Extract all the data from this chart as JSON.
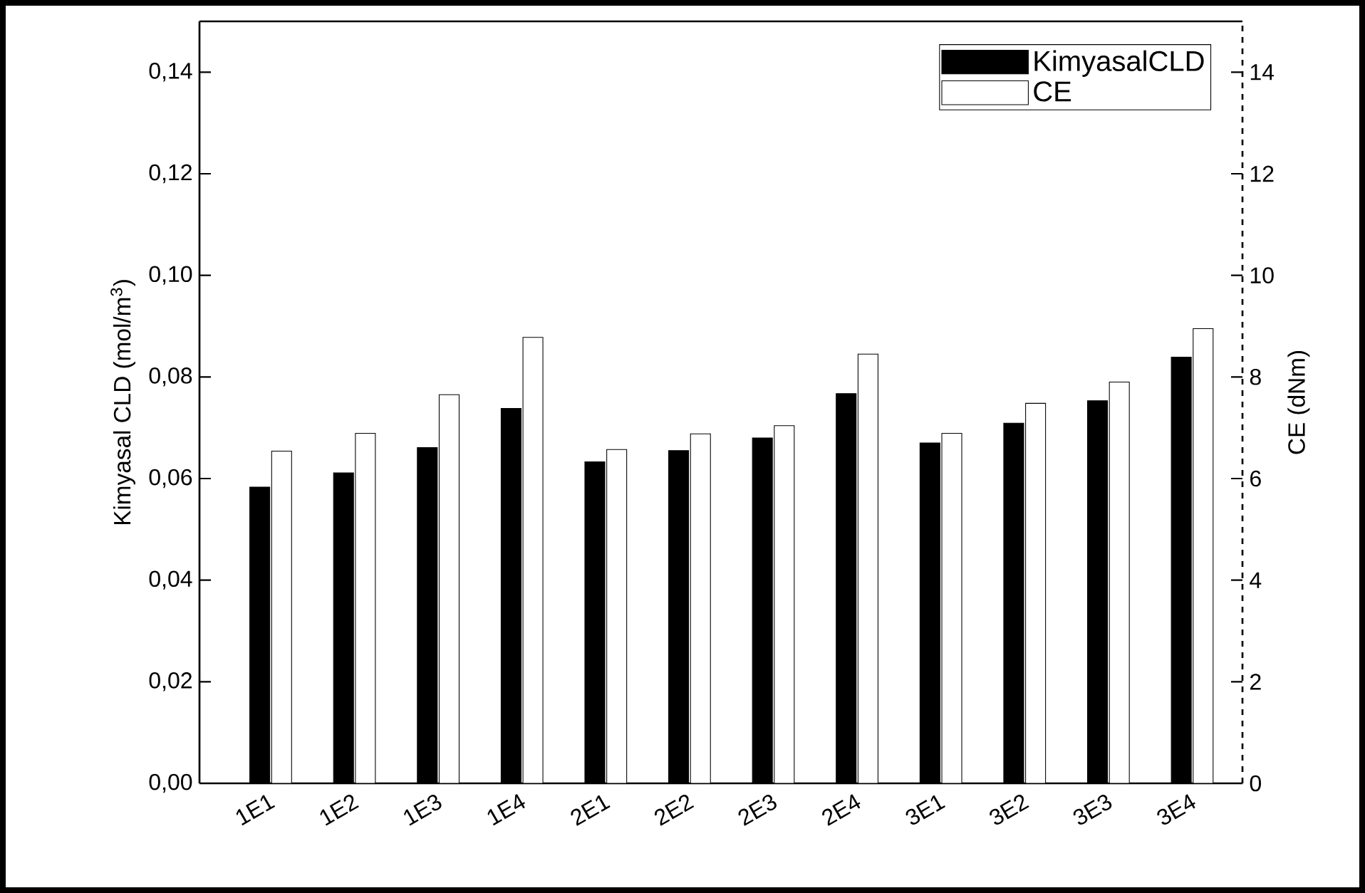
{
  "chart_data": {
    "type": "bar",
    "categories": [
      "1E1",
      "1E2",
      "1E3",
      "1E4",
      "2E1",
      "2E2",
      "2E3",
      "2E4",
      "3E1",
      "3E2",
      "3E3",
      "3E4"
    ],
    "series": [
      {
        "name": "KimyasalCLD",
        "color": "#000000",
        "values": [
          0.0583,
          0.0611,
          0.0661,
          0.0738,
          0.0633,
          0.0655,
          0.068,
          0.0767,
          0.067,
          0.0709,
          0.0753,
          0.0839
        ]
      },
      {
        "name": "CE",
        "color": "#ffffff",
        "axis": "y2",
        "values": [
          6.54,
          6.89,
          7.65,
          8.78,
          6.57,
          6.88,
          7.04,
          8.45,
          6.89,
          7.48,
          7.9,
          8.95
        ]
      }
    ],
    "ylabel": "Kimyasal CLD (mol/m$^{3}$)",
    "y2label": "CE (dNm)",
    "ylim": [
      0,
      0.15
    ],
    "yticks": [
      {
        "value": 0,
        "label": "0,00"
      },
      {
        "value": 0.02,
        "label": "0,02"
      },
      {
        "value": 0.04,
        "label": "0,04"
      },
      {
        "value": 0.06,
        "label": "0,06"
      },
      {
        "value": 0.08,
        "label": "0,08"
      },
      {
        "value": 0.1,
        "label": "0,10"
      },
      {
        "value": 0.12,
        "label": "0,12"
      },
      {
        "value": 0.14,
        "label": "0,14"
      }
    ],
    "y2lim": [
      0,
      15
    ],
    "y2ticks": [
      0,
      2,
      4,
      6,
      8,
      10,
      12,
      14
    ],
    "legend": "top right",
    "grid": false
  }
}
